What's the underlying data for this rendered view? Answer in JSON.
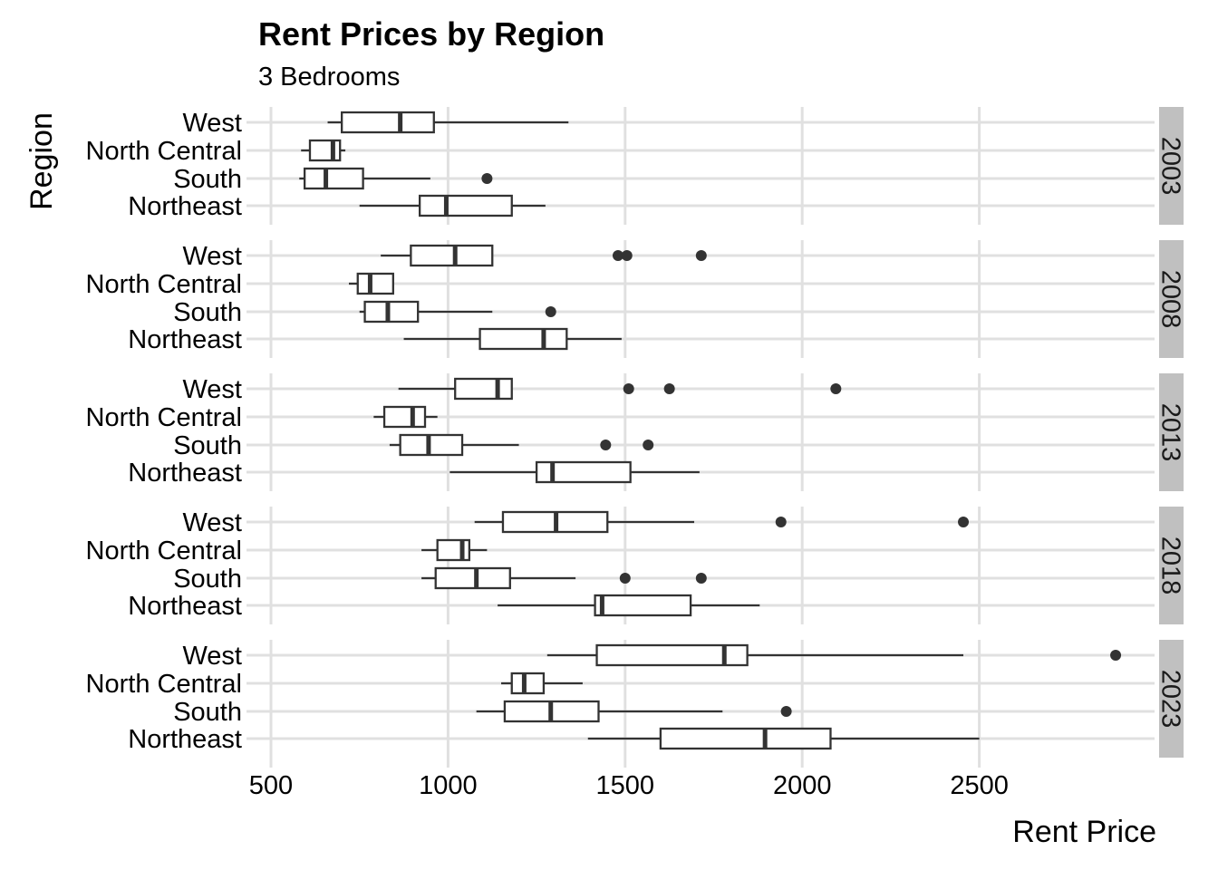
{
  "chart_data": {
    "type": "boxplot",
    "title": "Rent Prices by Region",
    "subtitle": "3 Bedrooms",
    "xlabel": "Rent Price",
    "ylabel": "Region",
    "xlim": [
      500,
      3000
    ],
    "x_ticks": [
      500,
      1000,
      1500,
      2000,
      2500
    ],
    "grid": true,
    "categories": [
      "West",
      "North Central",
      "South",
      "Northeast"
    ],
    "facets": [
      {
        "label": "2003",
        "boxes": [
          {
            "region": "West",
            "low": 660,
            "q1": 700,
            "median": 865,
            "q3": 960,
            "high": 1340,
            "outliers": []
          },
          {
            "region": "North Central",
            "low": 585,
            "q1": 610,
            "median": 675,
            "q3": 695,
            "high": 710,
            "outliers": []
          },
          {
            "region": "South",
            "low": 580,
            "q1": 595,
            "median": 655,
            "q3": 760,
            "high": 950,
            "outliers": [
              1110
            ]
          },
          {
            "region": "Northeast",
            "low": 750,
            "q1": 920,
            "median": 995,
            "q3": 1180,
            "high": 1275,
            "outliers": []
          }
        ]
      },
      {
        "label": "2008",
        "boxes": [
          {
            "region": "West",
            "low": 810,
            "q1": 895,
            "median": 1020,
            "q3": 1125,
            "high": 1125,
            "outliers": [
              1480,
              1505,
              1715
            ]
          },
          {
            "region": "North Central",
            "low": 720,
            "q1": 745,
            "median": 780,
            "q3": 845,
            "high": 845,
            "outliers": []
          },
          {
            "region": "South",
            "low": 750,
            "q1": 765,
            "median": 830,
            "q3": 915,
            "high": 1125,
            "outliers": [
              1290
            ]
          },
          {
            "region": "Northeast",
            "low": 875,
            "q1": 1090,
            "median": 1270,
            "q3": 1335,
            "high": 1490,
            "outliers": []
          }
        ]
      },
      {
        "label": "2013",
        "boxes": [
          {
            "region": "West",
            "low": 860,
            "q1": 1020,
            "median": 1140,
            "q3": 1180,
            "high": 1180,
            "outliers": [
              1510,
              1625,
              2095
            ]
          },
          {
            "region": "North Central",
            "low": 790,
            "q1": 820,
            "median": 900,
            "q3": 935,
            "high": 970,
            "outliers": []
          },
          {
            "region": "South",
            "low": 835,
            "q1": 865,
            "median": 945,
            "q3": 1040,
            "high": 1200,
            "outliers": [
              1445,
              1565
            ]
          },
          {
            "region": "Northeast",
            "low": 1005,
            "q1": 1250,
            "median": 1295,
            "q3": 1515,
            "high": 1710,
            "outliers": []
          }
        ]
      },
      {
        "label": "2018",
        "boxes": [
          {
            "region": "West",
            "low": 1075,
            "q1": 1155,
            "median": 1305,
            "q3": 1450,
            "high": 1695,
            "outliers": [
              1940,
              2455
            ]
          },
          {
            "region": "North Central",
            "low": 925,
            "q1": 970,
            "median": 1040,
            "q3": 1060,
            "high": 1110,
            "outliers": []
          },
          {
            "region": "South",
            "low": 925,
            "q1": 965,
            "median": 1080,
            "q3": 1175,
            "high": 1360,
            "outliers": [
              1500,
              1715
            ]
          },
          {
            "region": "Northeast",
            "low": 1140,
            "q1": 1415,
            "median": 1435,
            "q3": 1685,
            "high": 1880,
            "outliers": []
          }
        ]
      },
      {
        "label": "2023",
        "boxes": [
          {
            "region": "West",
            "low": 1280,
            "q1": 1420,
            "median": 1780,
            "q3": 1845,
            "high": 2455,
            "outliers": [
              2885
            ]
          },
          {
            "region": "North Central",
            "low": 1150,
            "q1": 1180,
            "median": 1215,
            "q3": 1270,
            "high": 1380,
            "outliers": []
          },
          {
            "region": "South",
            "low": 1080,
            "q1": 1160,
            "median": 1290,
            "q3": 1425,
            "high": 1775,
            "outliers": [
              1955
            ]
          },
          {
            "region": "Northeast",
            "low": 1395,
            "q1": 1600,
            "median": 1895,
            "q3": 2080,
            "high": 2500,
            "outliers": []
          }
        ]
      }
    ]
  }
}
